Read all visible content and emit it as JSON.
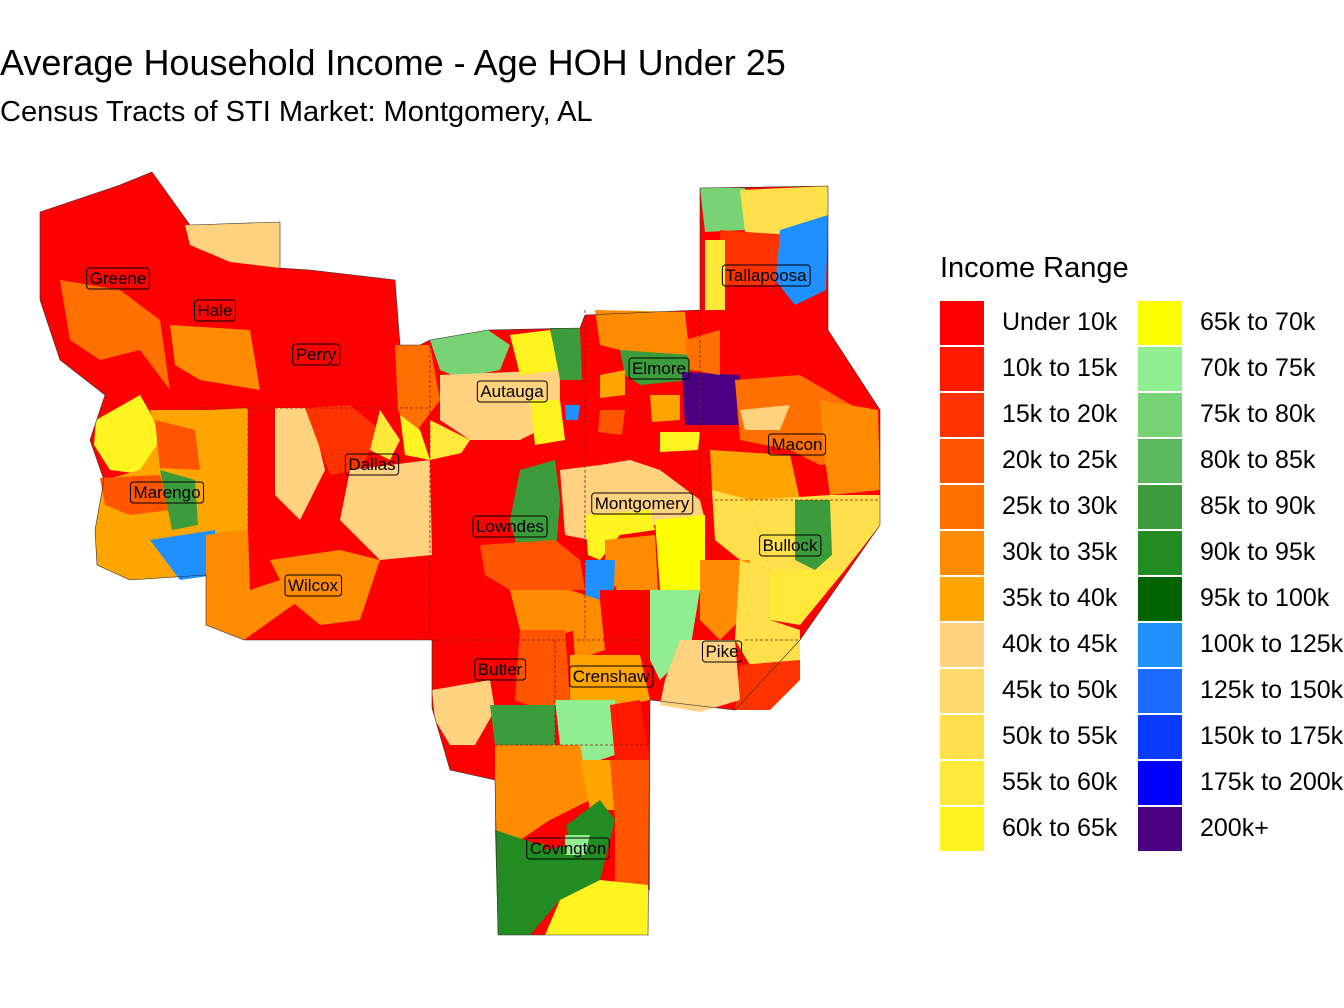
{
  "title": "Average Household Income - Age HOH Under 25",
  "subtitle": "Census Tracts of STI Market: Montgomery, AL",
  "legend": {
    "title": "Income Range",
    "items": [
      {
        "label": "Under 10k",
        "color": "#FF0000"
      },
      {
        "label": "10k to 15k",
        "color": "#FF1A00"
      },
      {
        "label": "15k to 20k",
        "color": "#FF3300"
      },
      {
        "label": "20k to 25k",
        "color": "#FF5500"
      },
      {
        "label": "25k to 30k",
        "color": "#FF7000"
      },
      {
        "label": "30k to 35k",
        "color": "#FF8C00"
      },
      {
        "label": "35k to 40k",
        "color": "#FFA500"
      },
      {
        "label": "40k to 45k",
        "color": "#FFD27F"
      },
      {
        "label": "45k to 50k",
        "color": "#FFDA6B"
      },
      {
        "label": "50k to 55k",
        "color": "#FFE04A"
      },
      {
        "label": "55k to 60k",
        "color": "#FFE838"
      },
      {
        "label": "60k to 65k",
        "color": "#FFF41F"
      },
      {
        "label": "65k to 70k",
        "color": "#FFFF00"
      },
      {
        "label": "70k to 75k",
        "color": "#90EE90"
      },
      {
        "label": "75k to 80k",
        "color": "#77D373"
      },
      {
        "label": "80k to 85k",
        "color": "#5CB85C"
      },
      {
        "label": "85k to 90k",
        "color": "#3C9C3C"
      },
      {
        "label": "90k to 95k",
        "color": "#228B22"
      },
      {
        "label": "95k to 100k",
        "color": "#006400"
      },
      {
        "label": "100k to 125k",
        "color": "#1E90FF"
      },
      {
        "label": "125k to 150k",
        "color": "#1C6BFF"
      },
      {
        "label": "150k to 175k",
        "color": "#0A3CFF"
      },
      {
        "label": "175k to 200k",
        "color": "#0000FF"
      },
      {
        "label": "200k+",
        "color": "#4B0082"
      }
    ]
  },
  "counties": [
    "Greene",
    "Hale",
    "Perry",
    "Autauga",
    "Elmore",
    "Tallapoosa",
    "Macon",
    "Dallas",
    "Marengo",
    "Lowndes",
    "Montgomery",
    "Bullock",
    "Wilcox",
    "Butler",
    "Crenshaw",
    "Pike",
    "Covington"
  ]
}
